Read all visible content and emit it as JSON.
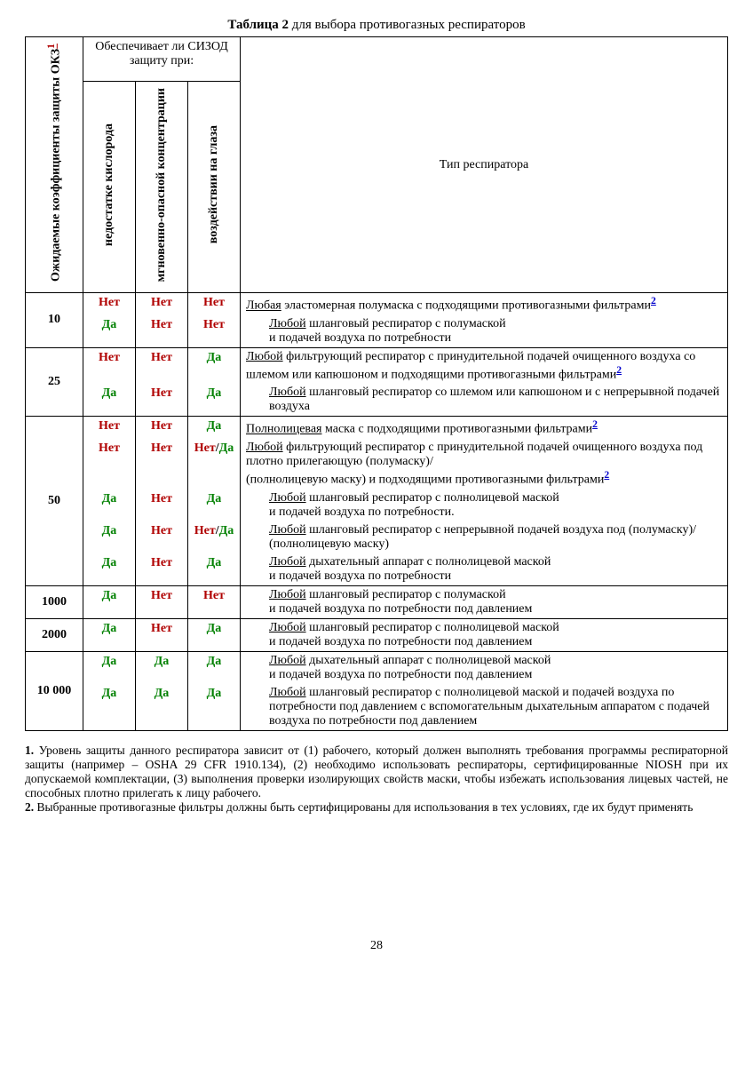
{
  "title_bold": "Таблица 2",
  "title_rest": " для выбора противогазных респираторов",
  "headers": {
    "col1": "Ожидаемые коэффициенты защиты ОКЗ",
    "group": "Обеспечивает ли СИЗОД защиту при:",
    "sub1": "недостатке кислорода",
    "sub2": "мгновенно-опасной концентрации",
    "sub3": "воздействии на глаза",
    "col5": "Тип респиратора"
  },
  "yes": "Да",
  "no": "Нет",
  "rows": [
    {
      "coef": "10",
      "sub": [
        {
          "c1": "no",
          "c2": "no",
          "c3": "no",
          "text": "<span class='u'>Любая</span> эластомерная полумаска с подходящими противогазными фильтрами<sup class='link'>2</sup>"
        },
        {
          "c1": "yes",
          "c2": "no",
          "c3": "no",
          "text": "<span class='indent'><span class='u'>Любой</span> шланговый респиратор с полумаской<br>и подачей воздуха по потребности</span>"
        }
      ]
    },
    {
      "coef": "25",
      "sub": [
        {
          "c1": "no",
          "c2": "no",
          "c3": "yes",
          "text": "<span class='u'>Любой</span> фильтрующий респиратор с принудительной подачей очищенного воздуха со шлемом или капюшоном и подходящими противогазными фильтрами<sup class='link'>2</sup>"
        },
        {
          "c1": "yes",
          "c2": "no",
          "c3": "yes",
          "text": "<span class='indent'><span class='u'>Любой</span> шланговый респиратор со шлемом или капюшоном и с непрерывной подачей воздуха</span>"
        }
      ]
    },
    {
      "coef": "50",
      "sub": [
        {
          "c1": "no",
          "c2": "no",
          "c3": "yes",
          "text": "<span class='u'>Полнолицевая</span> маска с подходящими противогазными фильтрами<sup class='link'>2</sup>"
        },
        {
          "c1": "no",
          "c2": "no",
          "c3": "noyes",
          "text": "<span class='u'>Любой</span> фильтрующий респиратор с принудительной подачей очищенного воздуха под плотно прилегающую (полумаску)/<br>(полнолицевую маску)  и подходящими противогазными фильтрами<sup class='link'>2</sup>"
        },
        {
          "c1": "yes",
          "c2": "no",
          "c3": "yes",
          "text": "<span class='indent'><span class='u'>Любой</span> шланговый респиратор с полнолицевой маской<br>и подачей воздуха по потребности.</span>"
        },
        {
          "c1": "yes",
          "c2": "no",
          "c3": "noyes",
          "text": "<span class='indent'><span class='u'>Любой</span> шланговый респиратор с непрерывной подачей воздуха под (полумаску)/ (полнолицевую маску)</span>"
        },
        {
          "c1": "yes",
          "c2": "no",
          "c3": "yes",
          "text": "<span class='indent'><span class='u'>Любой</span> дыхательный аппарат с полнолицевой маской<br>и подачей воздуха по потребности</span>"
        }
      ]
    },
    {
      "coef": "1000",
      "sub": [
        {
          "c1": "yes",
          "c2": "no",
          "c3": "no",
          "text": "<span class='indent'><span class='u'>Любой</span> шланговый респиратор с полумаской<br>и подачей воздуха по потребности под давлением</span>"
        }
      ]
    },
    {
      "coef": "2000",
      "sub": [
        {
          "c1": "yes",
          "c2": "no",
          "c3": "yes",
          "text": "<span class='indent'><span class='u'>Любой</span> шланговый респиратор с полнолицевой маской<br>и подачей воздуха по потребности под давлением</span>"
        }
      ]
    },
    {
      "coef": "10 000",
      "sub": [
        {
          "c1": "yes",
          "c2": "yes",
          "c3": "yes",
          "text": "<span class='indent'><span class='u'>Любой</span> дыхательный аппарат с полнолицевой маской<br>и подачей воздуха по потребности под давлением</span>"
        },
        {
          "c1": "yes",
          "c2": "yes",
          "c3": "yes",
          "text": "<span class='indent'><span class='u'>Любой</span> шланговый респиратор с полнолицевой маской и подачей воздуха по потребности под давлением с вспомогательным дыхательным аппаратом с подачей воздуха по потребности под давлением</span>"
        }
      ]
    }
  ],
  "footnote1": "1. Уровень защиты данного респиратора зависит от (1) рабочего, который должен выполнять требования программы респираторной защиты (например – OSHA 29 CFR 1910.134),  (2) необходимо использовать респираторы, сертифицированные NIOSH при их допускаемой комплектации, (3) выполнения проверки изолирующих свойств маски, чтобы избежать  использования лицевых частей, не способных плотно прилегать к лицу рабочего.",
  "footnote2": "2. Выбранные противогазные фильтры должны быть сертифицированы для использования в тех условиях, где их будут применять",
  "pagenum": "28"
}
